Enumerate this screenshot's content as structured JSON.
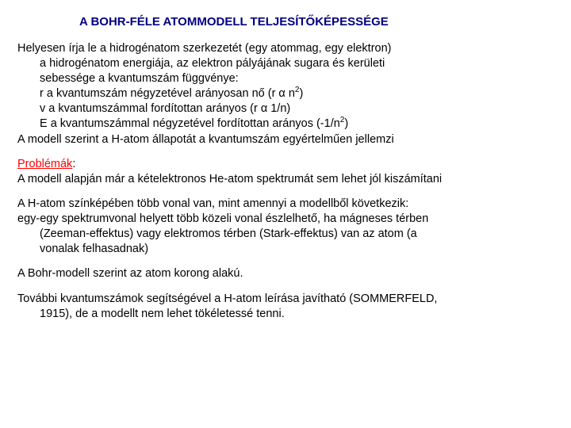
{
  "colors": {
    "background": "#ffffff",
    "text": "#000000",
    "title": "#000080",
    "accent": "#ff0000"
  },
  "typography": {
    "font_family": "Arial",
    "body_size_pt": 11,
    "title_size_pt": 11.5,
    "title_weight": "bold"
  },
  "title": "A BOHR-FÉLE ATOMMODELL TELJESÍTŐKÉPESSÉGE",
  "section1": {
    "l1": "Helyesen írja le a hidrogénatom szerkezetét (egy atommag, egy elektron)",
    "l2": "a hidrogénatom energiája, az elektron pályájának sugara és kerületi",
    "l3": " sebessége a kvantumszám függvénye:",
    "l4a": "r a kvantumszám négyzetével arányosan nő (r α n",
    "l4b": ")",
    "l5": "v a kvantumszámmal fordítottan arányos (r α 1/n)",
    "l6a": "E a kvantumszámmal négyzetével fordítottan arányos (-1/n",
    "l6b": ")",
    "l7": "A modell szerint a H-atom állapotát a kvantumszám egyértelműen jellemzi",
    "exp": "2"
  },
  "section2": {
    "heading": "Problémák",
    "colon": ":",
    "l1": "A modell alapján már a kételektronos He-atom spektrumát sem lehet jól kiszámítani"
  },
  "section3": {
    "l1": "A H-atom színképében több vonal van, mint amennyi a modellből következik:",
    "l2": "egy-egy spektrumvonal helyett több közeli vonal észlelhető, ha mágneses térben",
    "l3": "(Zeeman-effektus) vagy elektromos térben (Stark-effektus) van az atom (a",
    "l4": "vonalak felhasadnak)"
  },
  "section4": {
    "l1": "A Bohr-modell szerint az atom korong alakú."
  },
  "section5": {
    "l1": "További kvantumszámok segítségével a H-atom leírása javítható (SOMMERFELD,",
    "l2": "1915), de a modellt nem lehet tökéletessé tenni."
  }
}
